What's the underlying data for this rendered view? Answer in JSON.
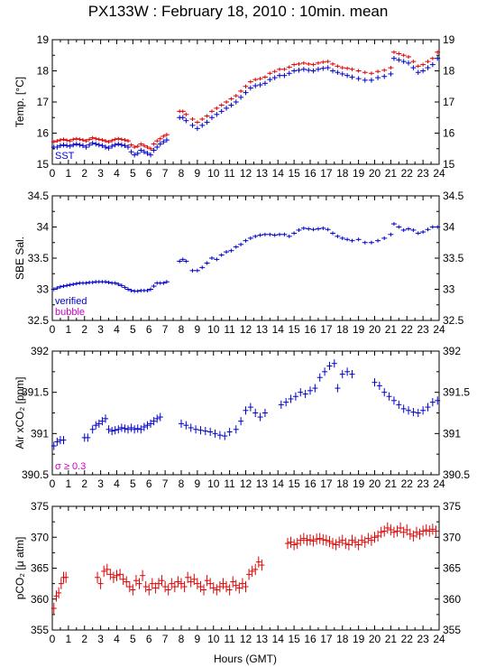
{
  "title": "PX133W : February 18, 2010 : 10min. mean",
  "xlabel": "Hours (GMT)",
  "colors": {
    "blue": "#0000cc",
    "red": "#dd0000",
    "magenta": "#cc00cc"
  },
  "chart_data": [
    {
      "type": "scatter",
      "ylabel": "Temp. [°C]",
      "xlim": [
        0,
        24
      ],
      "ylim": [
        15,
        19
      ],
      "yticks": [
        15,
        16,
        17,
        18,
        19
      ],
      "legend": [
        {
          "text": "SST",
          "color": "#0000cc"
        }
      ],
      "series": [
        {
          "color": "#dd0000",
          "err": 0.06,
          "x": [
            0.1,
            0.3,
            0.5,
            0.7,
            0.9,
            1.1,
            1.3,
            1.5,
            1.7,
            1.9,
            2.1,
            2.3,
            2.5,
            2.7,
            2.9,
            3.1,
            3.3,
            3.5,
            3.7,
            3.9,
            4.1,
            4.3,
            4.5,
            4.7,
            4.9,
            5.1,
            5.3,
            5.5,
            5.7,
            5.9,
            6.1,
            6.3,
            6.5,
            6.7,
            6.9,
            7.1,
            7.9,
            8.1,
            8.3,
            8.7,
            9.0,
            9.3,
            9.6,
            9.9,
            10.2,
            10.5,
            10.8,
            11.1,
            11.4,
            11.7,
            12.0,
            12.3,
            12.6,
            12.9,
            13.2,
            13.5,
            13.8,
            14.1,
            14.4,
            14.7,
            15.0,
            15.3,
            15.6,
            15.9,
            16.2,
            16.5,
            16.8,
            17.1,
            17.4,
            17.7,
            18.0,
            18.3,
            18.6,
            19.0,
            19.4,
            19.8,
            20.2,
            20.6,
            21.0,
            21.2,
            21.5,
            21.8,
            22.1,
            22.4,
            22.7,
            23.0,
            23.3,
            23.6,
            23.9
          ],
          "y": [
            15.72,
            15.75,
            15.78,
            15.8,
            15.77,
            15.75,
            15.8,
            15.82,
            15.8,
            15.78,
            15.75,
            15.8,
            15.85,
            15.82,
            15.8,
            15.78,
            15.75,
            15.72,
            15.76,
            15.8,
            15.82,
            15.8,
            15.78,
            15.75,
            15.62,
            15.55,
            15.58,
            15.65,
            15.6,
            15.55,
            15.5,
            15.65,
            15.75,
            15.82,
            15.9,
            15.95,
            16.7,
            16.7,
            16.6,
            16.45,
            16.35,
            16.45,
            16.55,
            16.7,
            16.8,
            16.9,
            17.0,
            17.1,
            17.2,
            17.35,
            17.5,
            17.65,
            17.72,
            17.75,
            17.8,
            17.92,
            17.98,
            18.05,
            18.05,
            18.12,
            18.2,
            18.22,
            18.25,
            18.22,
            18.2,
            18.25,
            18.28,
            18.3,
            18.22,
            18.15,
            18.1,
            18.08,
            18.05,
            18.0,
            17.95,
            17.92,
            17.98,
            18.02,
            18.1,
            18.6,
            18.55,
            18.5,
            18.45,
            18.3,
            18.15,
            18.2,
            18.3,
            18.4,
            18.6
          ]
        },
        {
          "color": "#0000cc",
          "err": 0.08,
          "x": [
            0.1,
            0.3,
            0.5,
            0.7,
            0.9,
            1.1,
            1.3,
            1.5,
            1.7,
            1.9,
            2.1,
            2.3,
            2.5,
            2.7,
            2.9,
            3.1,
            3.3,
            3.5,
            3.7,
            3.9,
            4.1,
            4.3,
            4.5,
            4.7,
            4.9,
            5.1,
            5.3,
            5.5,
            5.7,
            5.9,
            6.1,
            6.3,
            6.5,
            6.7,
            6.9,
            7.1,
            7.9,
            8.1,
            8.3,
            8.7,
            9.0,
            9.3,
            9.6,
            9.9,
            10.2,
            10.5,
            10.8,
            11.1,
            11.4,
            11.7,
            12.0,
            12.3,
            12.6,
            12.9,
            13.2,
            13.5,
            13.8,
            14.1,
            14.4,
            14.7,
            15.0,
            15.3,
            15.6,
            15.9,
            16.2,
            16.5,
            16.8,
            17.1,
            17.4,
            17.7,
            18.0,
            18.3,
            18.6,
            19.0,
            19.4,
            19.8,
            20.2,
            20.6,
            21.0,
            21.2,
            21.5,
            21.8,
            22.1,
            22.4,
            22.7,
            23.0,
            23.3,
            23.6,
            23.9
          ],
          "y": [
            15.55,
            15.55,
            15.6,
            15.62,
            15.6,
            15.58,
            15.62,
            15.65,
            15.62,
            15.6,
            15.55,
            15.62,
            15.68,
            15.65,
            15.62,
            15.6,
            15.55,
            15.52,
            15.58,
            15.62,
            15.65,
            15.62,
            15.6,
            15.55,
            15.4,
            15.3,
            15.35,
            15.45,
            15.4,
            15.35,
            15.3,
            15.45,
            15.55,
            15.65,
            15.72,
            15.78,
            16.5,
            16.5,
            16.4,
            16.25,
            16.15,
            16.25,
            16.35,
            16.5,
            16.6,
            16.7,
            16.8,
            16.9,
            17.0,
            17.15,
            17.3,
            17.45,
            17.52,
            17.55,
            17.6,
            17.72,
            17.78,
            17.85,
            17.85,
            17.92,
            18.0,
            18.02,
            18.05,
            18.02,
            18.0,
            18.05,
            18.08,
            18.1,
            18.0,
            17.95,
            17.9,
            17.85,
            17.8,
            17.75,
            17.7,
            17.7,
            17.78,
            17.82,
            17.9,
            18.4,
            18.35,
            18.3,
            18.25,
            18.1,
            17.95,
            18.0,
            18.1,
            18.2,
            18.4
          ]
        }
      ]
    },
    {
      "type": "scatter",
      "ylabel": "SBE Sal.",
      "xlim": [
        0,
        24
      ],
      "ylim": [
        32.5,
        34.5
      ],
      "yticks": [
        32.5,
        33,
        33.5,
        34,
        34.5
      ],
      "legend": [
        {
          "text": "verified",
          "color": "#0000cc"
        },
        {
          "text": "bubble",
          "color": "#cc00cc"
        }
      ],
      "series": [
        {
          "color": "#0000cc",
          "err": 0.03,
          "x": [
            0.1,
            0.3,
            0.5,
            0.7,
            0.9,
            1.1,
            1.3,
            1.5,
            1.7,
            1.9,
            2.1,
            2.3,
            2.5,
            2.7,
            2.9,
            3.1,
            3.3,
            3.5,
            3.7,
            3.9,
            4.1,
            4.3,
            4.5,
            4.7,
            4.9,
            5.1,
            5.3,
            5.5,
            5.7,
            5.9,
            6.1,
            6.3,
            6.5,
            6.7,
            6.9,
            7.1,
            7.9,
            8.1,
            8.3,
            8.7,
            9.0,
            9.3,
            9.6,
            9.9,
            10.2,
            10.5,
            10.8,
            11.1,
            11.4,
            11.7,
            12.0,
            12.3,
            12.6,
            12.9,
            13.2,
            13.5,
            13.8,
            14.1,
            14.4,
            14.7,
            15.0,
            15.3,
            15.6,
            15.9,
            16.2,
            16.5,
            16.8,
            17.1,
            17.4,
            17.7,
            18.0,
            18.3,
            18.6,
            19.0,
            19.4,
            19.8,
            20.2,
            20.6,
            21.0,
            21.2,
            21.5,
            21.8,
            22.1,
            22.4,
            22.7,
            23.0,
            23.3,
            23.6,
            23.9
          ],
          "y": [
            33.0,
            33.02,
            33.04,
            33.05,
            33.06,
            33.07,
            33.08,
            33.09,
            33.1,
            33.1,
            33.1,
            33.11,
            33.11,
            33.12,
            33.12,
            33.12,
            33.12,
            33.11,
            33.1,
            33.1,
            33.08,
            33.06,
            33.03,
            33.0,
            32.98,
            32.97,
            32.97,
            32.98,
            32.98,
            32.98,
            33.0,
            33.05,
            33.1,
            33.1,
            33.1,
            33.12,
            33.45,
            33.48,
            33.45,
            33.3,
            33.3,
            33.35,
            33.42,
            33.5,
            33.48,
            33.55,
            33.6,
            33.62,
            33.68,
            33.72,
            33.78,
            33.82,
            33.85,
            33.87,
            33.88,
            33.88,
            33.87,
            33.88,
            33.88,
            33.85,
            33.9,
            33.95,
            33.98,
            33.97,
            33.96,
            33.97,
            33.98,
            33.96,
            33.9,
            33.85,
            33.82,
            33.8,
            33.78,
            33.8,
            33.75,
            33.75,
            33.78,
            33.82,
            33.88,
            34.05,
            34.0,
            33.95,
            33.97,
            33.95,
            33.9,
            33.92,
            33.96,
            34.0,
            34.0
          ]
        }
      ]
    },
    {
      "type": "scatter",
      "ylabel": "Air xCO₂ [ppm]",
      "xlim": [
        0,
        24
      ],
      "ylim": [
        390.5,
        392
      ],
      "yticks": [
        390.5,
        391,
        391.5,
        392
      ],
      "legend": [
        {
          "text": "σ ≥ 0.3",
          "color": "#cc00cc"
        }
      ],
      "series": [
        {
          "color": "#0000cc",
          "err": 0.05,
          "x": [
            0.1,
            0.3,
            0.5,
            0.7,
            2.0,
            2.2,
            2.5,
            2.7,
            2.9,
            3.1,
            3.3,
            3.5,
            3.7,
            3.9,
            4.1,
            4.3,
            4.5,
            4.7,
            4.9,
            5.1,
            5.3,
            5.5,
            5.7,
            5.9,
            6.1,
            6.3,
            6.5,
            6.7,
            8.0,
            8.3,
            8.6,
            8.9,
            9.2,
            9.5,
            9.8,
            10.1,
            10.4,
            10.7,
            11.0,
            11.4,
            11.7,
            12.0,
            12.3,
            12.6,
            12.9,
            13.2,
            14.2,
            14.5,
            14.8,
            15.1,
            15.4,
            15.7,
            16.0,
            16.3,
            16.6,
            16.9,
            17.2,
            17.5,
            17.7,
            18.0,
            18.3,
            18.6,
            20.0,
            20.3,
            20.6,
            20.9,
            21.2,
            21.5,
            21.8,
            22.1,
            22.4,
            22.7,
            23.0,
            23.3,
            23.6,
            23.9
          ],
          "y": [
            390.85,
            390.9,
            390.92,
            390.92,
            390.95,
            390.95,
            391.05,
            391.1,
            391.12,
            391.15,
            391.18,
            391.05,
            391.03,
            391.04,
            391.05,
            391.07,
            391.06,
            391.05,
            391.07,
            391.05,
            391.06,
            391.05,
            391.08,
            391.1,
            391.12,
            391.15,
            391.18,
            391.2,
            391.12,
            391.1,
            391.07,
            391.05,
            391.04,
            391.03,
            391.02,
            391.0,
            390.98,
            390.97,
            391.02,
            391.05,
            391.15,
            391.28,
            391.32,
            391.25,
            391.2,
            391.25,
            391.35,
            391.38,
            391.42,
            391.45,
            391.5,
            391.48,
            391.52,
            391.55,
            391.68,
            391.75,
            391.82,
            391.85,
            391.55,
            391.72,
            391.75,
            391.72,
            391.62,
            391.58,
            391.5,
            391.45,
            391.4,
            391.35,
            391.3,
            391.28,
            391.26,
            391.25,
            391.28,
            391.32,
            391.38,
            391.4
          ]
        }
      ]
    },
    {
      "type": "scatter",
      "ylabel": "pCO₂ [μ atm]",
      "xlim": [
        0,
        24
      ],
      "ylim": [
        355,
        375
      ],
      "yticks": [
        355,
        360,
        365,
        370,
        375
      ],
      "series": [
        {
          "color": "#dd0000",
          "err": 0.9,
          "x": [
            0.1,
            0.25,
            0.4,
            0.55,
            0.7,
            0.85,
            2.8,
            3.0,
            3.2,
            3.4,
            3.6,
            3.8,
            4.0,
            4.2,
            4.4,
            4.6,
            4.8,
            5.0,
            5.2,
            5.4,
            5.6,
            5.8,
            6.0,
            6.2,
            6.4,
            6.6,
            6.8,
            7.0,
            7.2,
            7.4,
            7.6,
            7.8,
            8.0,
            8.2,
            8.4,
            8.6,
            8.8,
            9.0,
            9.2,
            9.4,
            9.6,
            9.8,
            10.0,
            10.2,
            10.4,
            10.6,
            10.8,
            11.0,
            11.2,
            11.4,
            11.6,
            11.8,
            12.0,
            12.2,
            12.4,
            12.6,
            12.8,
            13.0,
            14.6,
            14.8,
            15.0,
            15.2,
            15.4,
            15.6,
            15.8,
            16.0,
            16.2,
            16.4,
            16.6,
            16.8,
            17.0,
            17.2,
            17.4,
            17.6,
            17.8,
            18.0,
            18.2,
            18.4,
            18.6,
            18.8,
            19.0,
            19.2,
            19.4,
            19.6,
            19.8,
            20.0,
            20.2,
            20.4,
            20.6,
            20.8,
            21.0,
            21.2,
            21.4,
            21.6,
            21.8,
            22.0,
            22.2,
            22.4,
            22.6,
            22.8,
            23.0,
            23.2,
            23.4,
            23.6,
            23.8
          ],
          "y": [
            358.5,
            360.5,
            361.0,
            362.5,
            363.5,
            363.5,
            363.5,
            362.5,
            364.5,
            364.8,
            364.0,
            363.5,
            363.8,
            364.0,
            363.2,
            362.8,
            362.0,
            361.5,
            363.0,
            362.5,
            363.8,
            362.0,
            361.5,
            362.5,
            361.8,
            362.5,
            363.0,
            362.0,
            361.5,
            362.5,
            362.0,
            362.8,
            362.5,
            362.0,
            363.5,
            362.8,
            363.2,
            362.5,
            362.0,
            361.5,
            363.0,
            362.5,
            361.8,
            361.5,
            362.0,
            362.5,
            362.0,
            361.5,
            362.8,
            362.2,
            361.8,
            362.5,
            362.0,
            364.0,
            364.5,
            364.8,
            366.0,
            365.5,
            369.0,
            369.2,
            368.8,
            369.0,
            369.5,
            369.8,
            369.5,
            369.6,
            369.4,
            369.7,
            369.8,
            369.6,
            369.5,
            369.3,
            369.0,
            368.8,
            369.2,
            369.5,
            369.0,
            368.8,
            369.5,
            369.2,
            368.8,
            369.5,
            369.2,
            369.8,
            369.5,
            370.0,
            370.2,
            370.8,
            371.0,
            371.5,
            371.2,
            370.8,
            371.0,
            371.5,
            370.8,
            371.2,
            370.5,
            370.2,
            370.8,
            370.5,
            371.0,
            371.2,
            371.0,
            371.3,
            371.0
          ]
        }
      ]
    }
  ]
}
